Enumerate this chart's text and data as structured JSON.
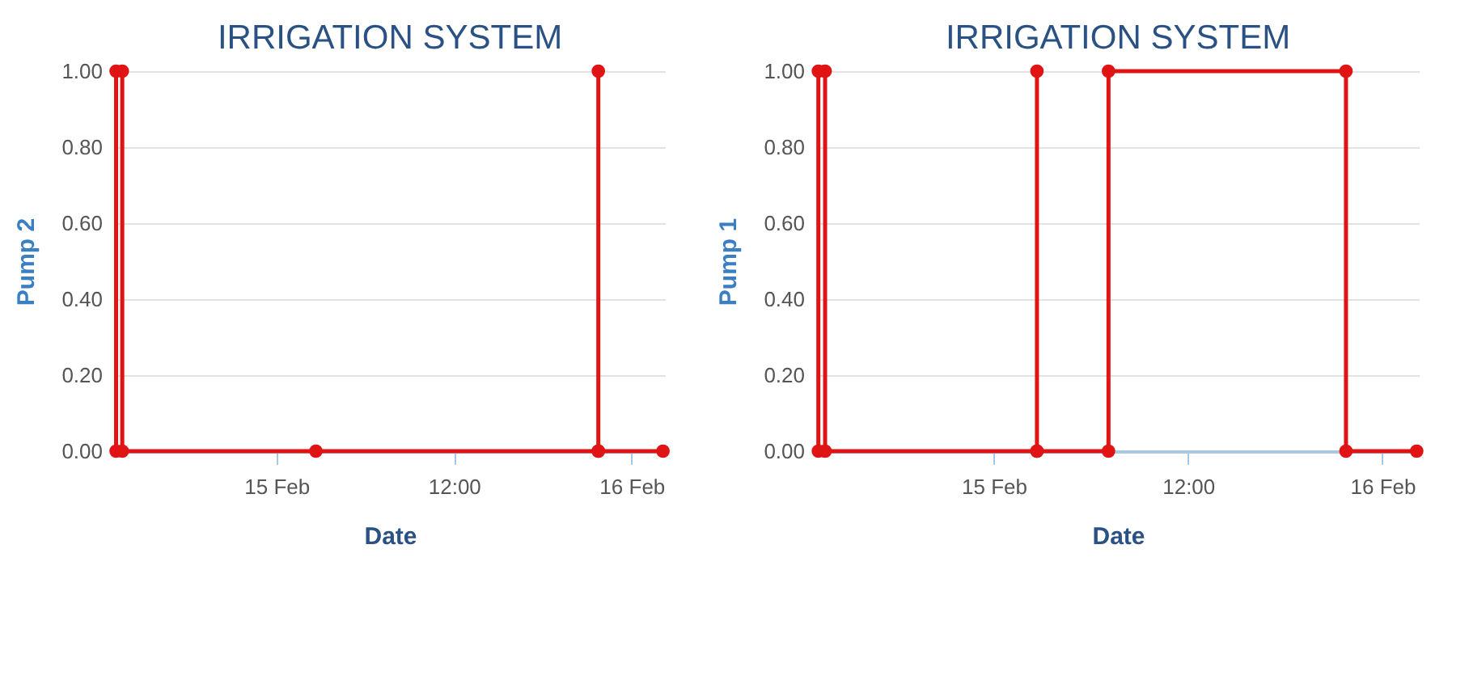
{
  "chart_data": [
    {
      "type": "line",
      "title": "IRRIGATION SYSTEM",
      "xlabel": "Date",
      "ylabel": "Pump 2",
      "xlim": [
        "--02-14T13:05",
        "--02-16T02:15"
      ],
      "xticks": [
        {
          "value": "--02-15T00:00",
          "label": "15 Feb"
        },
        {
          "value": "--02-15T12:00",
          "label": "12:00"
        },
        {
          "value": "--02-16T00:00",
          "label": "16 Feb"
        }
      ],
      "ylim": [
        0,
        1
      ],
      "yticks": [
        {
          "value": 0,
          "label": "0.00"
        },
        {
          "value": 0.2,
          "label": "0.20"
        },
        {
          "value": 0.4,
          "label": "0.40"
        },
        {
          "value": 0.6,
          "label": "0.60"
        },
        {
          "value": 0.8,
          "label": "0.80"
        },
        {
          "value": 1,
          "label": "1.00"
        }
      ],
      "grid": "y",
      "marker": "circle",
      "legend": false,
      "series": [
        {
          "color": "#e01414",
          "x": [
            "--02-14T13:10",
            "--02-14T13:10",
            "--02-14T13:35",
            "--02-14T13:35",
            "--02-15T02:40",
            "--02-15T21:45",
            "--02-15T21:45",
            "--02-15T21:45",
            "--02-16T02:07"
          ],
          "values": [
            0,
            1,
            1,
            0,
            0,
            0,
            1,
            0,
            0
          ]
        }
      ]
    },
    {
      "type": "line",
      "title": "IRRIGATION SYSTEM",
      "xlabel": "Date",
      "ylabel": "Pump 1",
      "xlim": [
        "--02-14T13:05",
        "--02-16T02:15"
      ],
      "xticks": [
        {
          "value": "--02-15T00:00",
          "label": "15 Feb"
        },
        {
          "value": "--02-15T12:00",
          "label": "12:00"
        },
        {
          "value": "--02-16T00:00",
          "label": "16 Feb"
        }
      ],
      "ylim": [
        0,
        1
      ],
      "yticks": [
        {
          "value": 0,
          "label": "0.00"
        },
        {
          "value": 0.2,
          "label": "0.20"
        },
        {
          "value": 0.4,
          "label": "0.40"
        },
        {
          "value": 0.6,
          "label": "0.60"
        },
        {
          "value": 0.8,
          "label": "0.80"
        },
        {
          "value": 1,
          "label": "1.00"
        }
      ],
      "grid": "y",
      "marker": "circle",
      "legend": false,
      "series": [
        {
          "color": "#e01414",
          "x": [
            "--02-14T13:10",
            "--02-14T13:10",
            "--02-14T13:35",
            "--02-14T13:35",
            "--02-15T02:40",
            "--02-15T02:40",
            "--02-15T02:40",
            "--02-15T07:05",
            "--02-15T07:05",
            "--02-15T21:45",
            "--02-15T21:45",
            "--02-16T02:07"
          ],
          "values": [
            0,
            1,
            1,
            0,
            0,
            1,
            0,
            0,
            1,
            1,
            0,
            0
          ]
        }
      ]
    }
  ]
}
